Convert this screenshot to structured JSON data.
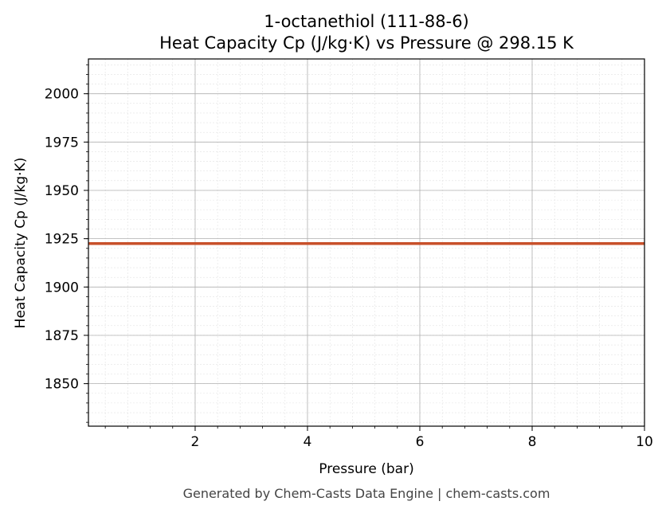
{
  "chart_data": {
    "type": "line",
    "title": "1-octanethiol (111-88-6)",
    "subtitle": "Heat Capacity Cp (J/kg·K) vs Pressure @ 298.15 K",
    "xlabel": "Pressure (bar)",
    "ylabel": "Heat Capacity Cp (J/kg·K)",
    "xlim": [
      0.1,
      10
    ],
    "ylim": [
      1828,
      2018
    ],
    "xticks": [
      2,
      4,
      6,
      8,
      10
    ],
    "yticks": [
      1850,
      1875,
      1900,
      1925,
      1950,
      1975,
      2000
    ],
    "grid": true,
    "series": [
      {
        "color": "#c8502a",
        "x": [
          0.1,
          1,
          2,
          3,
          4,
          5,
          6,
          7,
          8,
          9,
          10
        ],
        "y": [
          1922.5,
          1922.5,
          1922.5,
          1922.5,
          1922.5,
          1922.5,
          1922.5,
          1922.5,
          1922.5,
          1922.5,
          1922.5
        ]
      }
    ]
  },
  "footer": "Generated by Chem-Casts Data Engine | chem-casts.com"
}
